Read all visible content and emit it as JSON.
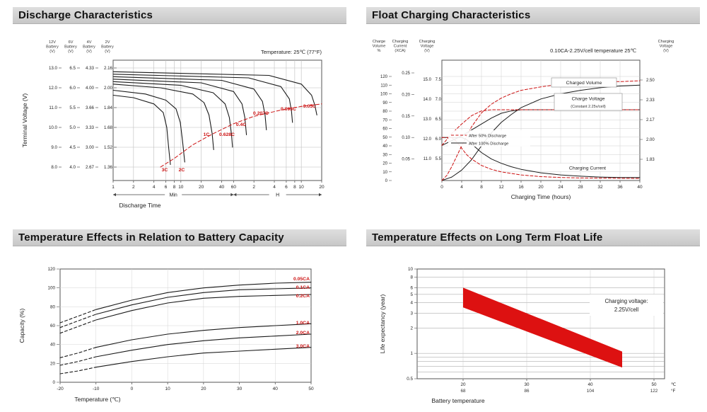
{
  "page": {
    "background": "#ffffff",
    "header_bg": "#d3d3d3",
    "accent_red": "#cc1111",
    "curve_black": "#1a1a1a"
  },
  "chart_data": [
    {
      "id": "discharge-characteristics",
      "type": "line",
      "title": "Discharge Characteristics",
      "note": "Temperature: 25℃ (77°F)",
      "xlabel": "Discharge Time",
      "ylabel": "Terminal Voltage (V)",
      "x_scale": "log-time",
      "x_sections": [
        {
          "unit": "Min",
          "ticks": [
            1,
            2,
            4,
            6,
            8,
            10,
            20,
            40,
            60
          ]
        },
        {
          "unit": "H",
          "ticks": [
            2,
            4,
            6,
            8,
            10,
            20
          ]
        }
      ],
      "y_axes": [
        {
          "name": "12V Battery (V)",
          "ticks": [
            "13.0",
            "12.0",
            "11.0",
            "10.0",
            "9.0",
            "8.0"
          ]
        },
        {
          "name": "6V Battery (V)",
          "ticks": [
            "6.5",
            "6.0",
            "5.5",
            "5.0",
            "4.5",
            "4.0"
          ]
        },
        {
          "name": "4V Battery (V)",
          "ticks": [
            "4.33",
            "4.00",
            "3.66",
            "3.33",
            "3.00",
            "2.67"
          ]
        },
        {
          "name": "2V Battery (V)",
          "ticks": [
            "2.16",
            "2.00",
            "1.84",
            "1.68",
            "1.52",
            "1.36"
          ]
        }
      ],
      "series": [
        {
          "label": "3C",
          "points": [
            [
              1,
              1.94
            ],
            [
              2,
              1.92
            ],
            [
              4,
              1.87
            ],
            [
              5.5,
              1.8
            ],
            [
              6.2,
              1.68
            ],
            [
              6.6,
              1.52
            ],
            [
              7,
              1.38
            ]
          ]
        },
        {
          "label": "2C",
          "points": [
            [
              1,
              1.98
            ],
            [
              3,
              1.95
            ],
            [
              6,
              1.9
            ],
            [
              8.5,
              1.83
            ],
            [
              9.8,
              1.72
            ],
            [
              10.6,
              1.57
            ],
            [
              11.4,
              1.4
            ]
          ]
        },
        {
          "label": "1C",
          "points": [
            [
              1,
              2.03
            ],
            [
              5,
              2.0
            ],
            [
              15,
              1.95
            ],
            [
              22,
              1.88
            ],
            [
              26,
              1.78
            ],
            [
              29,
              1.63
            ],
            [
              30.5,
              1.5
            ]
          ]
        },
        {
          "label": "0.628C",
          "points": [
            [
              1,
              2.05
            ],
            [
              10,
              2.02
            ],
            [
              30,
              1.96
            ],
            [
              45,
              1.87
            ],
            [
              52,
              1.76
            ],
            [
              56,
              1.62
            ],
            [
              58,
              1.52
            ]
          ]
        },
        {
          "label": "0.4C",
          "points": [
            [
              1,
              2.07
            ],
            [
              20,
              2.04
            ],
            [
              60,
              1.97
            ],
            [
              80,
              1.87
            ],
            [
              88,
              1.76
            ],
            [
              93,
              1.62
            ]
          ]
        },
        {
          "label": "0.207C",
          "points": [
            [
              1,
              2.09
            ],
            [
              40,
              2.06
            ],
            [
              120,
              1.99
            ],
            [
              160,
              1.89
            ],
            [
              175,
              1.78
            ],
            [
              183,
              1.66
            ]
          ]
        },
        {
          "label": "0.093C",
          "points": [
            [
              1,
              2.11
            ],
            [
              100,
              2.08
            ],
            [
              300,
              2.01
            ],
            [
              400,
              1.91
            ],
            [
              430,
              1.81
            ],
            [
              445,
              1.72
            ]
          ]
        },
        {
          "label": "0.05C",
          "points": [
            [
              1,
              2.13
            ],
            [
              200,
              2.1
            ],
            [
              600,
              2.03
            ],
            [
              850,
              1.94
            ],
            [
              950,
              1.86
            ],
            [
              1020,
              1.78
            ]
          ]
        }
      ],
      "cutoff_curve": {
        "style": "dashed-red",
        "points": [
          [
            5,
            1.36
          ],
          [
            8,
            1.43
          ],
          [
            15,
            1.54
          ],
          [
            30,
            1.63
          ],
          [
            60,
            1.71
          ],
          [
            120,
            1.77
          ],
          [
            300,
            1.82
          ],
          [
            600,
            1.85
          ],
          [
            1200,
            1.87
          ]
        ]
      }
    },
    {
      "id": "float-charging-characteristics",
      "type": "line",
      "title": "Float Charging Characteristics",
      "note": "0.10CA-2.25V/cell  temperature 25℃",
      "xlabel": "Charging Time (hours)",
      "x_ticks": [
        0,
        4,
        8,
        12,
        16,
        20,
        24,
        28,
        32,
        36,
        40
      ],
      "left_axes": [
        {
          "name": "Charge Volume %",
          "ticks": [
            120,
            110,
            100,
            90,
            80,
            70,
            60,
            50,
            40,
            30,
            20,
            10,
            0
          ]
        },
        {
          "name": "Charging Current (XCA)",
          "ticks": [
            "0.25",
            "0.20",
            "0.15",
            "0.10",
            "0.05"
          ]
        },
        {
          "name": "Charging Voltage (V)",
          "ticks_12v": [
            "15.0",
            "14.0",
            "13.0",
            "12.0",
            "11.0"
          ],
          "ticks_6v": [
            "7.5",
            "7.0",
            "6.5",
            "6.0",
            "5.5"
          ]
        }
      ],
      "right_axis": {
        "name": "Charging Voltage (V)",
        "ticks": [
          "2.50",
          "2.33",
          "2.17",
          "2.00",
          "1.83"
        ]
      },
      "legend": [
        {
          "label": "After  50% Discharge",
          "style": "dashed-red"
        },
        {
          "label": "After 100% Discharge",
          "style": "solid-black"
        }
      ],
      "curve_labels": {
        "volume": "Charged Volume",
        "voltage": "Charge Voltage",
        "voltage_sub": "(Constant 2.25v/cell)",
        "current": "Charging Current"
      },
      "series": [
        {
          "name": "charged-volume-100",
          "unit": "%",
          "style": "solid-black",
          "points": [
            [
              0,
              0
            ],
            [
              2,
              4
            ],
            [
              4,
              12
            ],
            [
              6,
              24
            ],
            [
              8,
              40
            ],
            [
              10,
              55
            ],
            [
              12,
              67
            ],
            [
              14,
              76
            ],
            [
              16,
              84
            ],
            [
              20,
              94
            ],
            [
              24,
              100
            ],
            [
              28,
              104
            ],
            [
              32,
              107
            ],
            [
              36,
              109
            ],
            [
              40,
              110
            ]
          ]
        },
        {
          "name": "charged-volume-50",
          "unit": "%",
          "style": "dashed-red",
          "points": [
            [
              0,
              0
            ],
            [
              1,
              6
            ],
            [
              2,
              16
            ],
            [
              4,
              40
            ],
            [
              6,
              62
            ],
            [
              8,
              78
            ],
            [
              10,
              88
            ],
            [
              12,
              95
            ],
            [
              14,
              100
            ],
            [
              16,
              104
            ],
            [
              20,
              108
            ],
            [
              24,
              111
            ],
            [
              28,
              113
            ],
            [
              32,
              114
            ],
            [
              36,
              114
            ],
            [
              40,
              115
            ]
          ]
        },
        {
          "name": "charge-voltage-100",
          "unit": "V/cell",
          "style": "solid-black",
          "points": [
            [
              0,
              1.95
            ],
            [
              2,
              1.99
            ],
            [
              4,
              2.03
            ],
            [
              6,
              2.08
            ],
            [
              8,
              2.13
            ],
            [
              10,
              2.18
            ],
            [
              12,
              2.22
            ],
            [
              14,
              2.24
            ],
            [
              16,
              2.25
            ],
            [
              40,
              2.25
            ]
          ]
        },
        {
          "name": "charge-voltage-50",
          "unit": "V/cell",
          "style": "dashed-red",
          "points": [
            [
              0,
              1.95
            ],
            [
              1,
              2.0
            ],
            [
              2,
              2.05
            ],
            [
              4,
              2.13
            ],
            [
              6,
              2.2
            ],
            [
              8,
              2.24
            ],
            [
              10,
              2.25
            ],
            [
              40,
              2.25
            ]
          ]
        },
        {
          "name": "charging-current-100",
          "unit": "CA",
          "style": "solid-black",
          "points": [
            [
              0,
              0.1
            ],
            [
              4,
              0.1
            ],
            [
              5,
              0.095
            ],
            [
              6,
              0.085
            ],
            [
              8,
              0.065
            ],
            [
              10,
              0.05
            ],
            [
              12,
              0.04
            ],
            [
              14,
              0.032
            ],
            [
              16,
              0.026
            ],
            [
              20,
              0.018
            ],
            [
              24,
              0.013
            ],
            [
              28,
              0.01
            ],
            [
              32,
              0.008
            ],
            [
              36,
              0.007
            ],
            [
              40,
              0.007
            ]
          ]
        },
        {
          "name": "charging-current-50",
          "unit": "CA",
          "style": "dashed-red",
          "points": [
            [
              0,
              0.1
            ],
            [
              2,
              0.1
            ],
            [
              3,
              0.09
            ],
            [
              4,
              0.075
            ],
            [
              5,
              0.06
            ],
            [
              6,
              0.05
            ],
            [
              8,
              0.035
            ],
            [
              10,
              0.026
            ],
            [
              12,
              0.02
            ],
            [
              16,
              0.013
            ],
            [
              20,
              0.009
            ],
            [
              24,
              0.007
            ],
            [
              28,
              0.006
            ],
            [
              40,
              0.005
            ]
          ]
        }
      ]
    },
    {
      "id": "temperature-effects-battery-capacity",
      "type": "line",
      "title": "Temperature Effects in Relation to Battery Capacity",
      "xlabel": "Temperature (℃)",
      "ylabel": "Capacity (%)",
      "x_ticks": [
        -20,
        -10,
        0,
        10,
        20,
        30,
        40,
        50
      ],
      "y_ticks": [
        0,
        20,
        40,
        60,
        80,
        100,
        120
      ],
      "dashed_below_c": -10,
      "series": [
        {
          "label": "0.05CA",
          "points": [
            [
              -20,
              63
            ],
            [
              -15,
              70
            ],
            [
              -10,
              77
            ],
            [
              0,
              87
            ],
            [
              10,
              95
            ],
            [
              20,
              100
            ],
            [
              30,
              103
            ],
            [
              40,
              105
            ],
            [
              50,
              106
            ]
          ]
        },
        {
          "label": "0.1CA",
          "points": [
            [
              -20,
              58
            ],
            [
              -15,
              65
            ],
            [
              -10,
              72
            ],
            [
              0,
              82
            ],
            [
              10,
              90
            ],
            [
              20,
              95
            ],
            [
              30,
              98
            ],
            [
              40,
              99
            ],
            [
              50,
              100
            ]
          ]
        },
        {
          "label": "0.2CA",
          "points": [
            [
              -20,
              52
            ],
            [
              -15,
              59
            ],
            [
              -10,
              66
            ],
            [
              0,
              76
            ],
            [
              10,
              84
            ],
            [
              20,
              89
            ],
            [
              30,
              91
            ],
            [
              40,
              92
            ],
            [
              50,
              93
            ]
          ]
        },
        {
          "label": "1.0CA",
          "points": [
            [
              -20,
              26
            ],
            [
              -15,
              31
            ],
            [
              -10,
              37
            ],
            [
              0,
              45
            ],
            [
              10,
              51
            ],
            [
              20,
              55
            ],
            [
              30,
              58
            ],
            [
              40,
              60
            ],
            [
              50,
              62
            ]
          ]
        },
        {
          "label": "2.0CA",
          "points": [
            [
              -20,
              18
            ],
            [
              -15,
              22
            ],
            [
              -10,
              27
            ],
            [
              0,
              34
            ],
            [
              10,
              40
            ],
            [
              20,
              44
            ],
            [
              30,
              47
            ],
            [
              40,
              49
            ],
            [
              50,
              51
            ]
          ]
        },
        {
          "label": "3.0CA",
          "points": [
            [
              -20,
              9
            ],
            [
              -15,
              12
            ],
            [
              -10,
              16
            ],
            [
              0,
              22
            ],
            [
              10,
              27
            ],
            [
              20,
              31
            ],
            [
              30,
              33
            ],
            [
              40,
              35
            ],
            [
              50,
              37
            ]
          ]
        }
      ]
    },
    {
      "id": "temperature-effects-float-life",
      "type": "area-band",
      "title": "Temperature Effects on Long Term Float Life",
      "xlabel": "Battery temperature",
      "ylabel": "Life expectancy (year)",
      "annotation": [
        "Charging voltage:",
        "2.25V/cell"
      ],
      "y_scale": "log",
      "y_ticks": [
        10,
        8,
        6,
        5,
        4,
        3,
        2,
        1,
        0.5
      ],
      "y_minor_ticks": [
        0.9,
        0.8,
        0.7,
        0.6
      ],
      "x_ticks_c": [
        20,
        30,
        40,
        50
      ],
      "x_ticks_f": [
        68,
        86,
        104,
        122
      ],
      "x_unit_c": "℃",
      "x_unit_f": "°F",
      "band": {
        "color": "#dd1111",
        "top": [
          [
            20,
            6.0
          ],
          [
            45,
            1.05
          ]
        ],
        "bottom": [
          [
            20,
            3.5
          ],
          [
            45,
            0.68
          ]
        ]
      }
    }
  ]
}
